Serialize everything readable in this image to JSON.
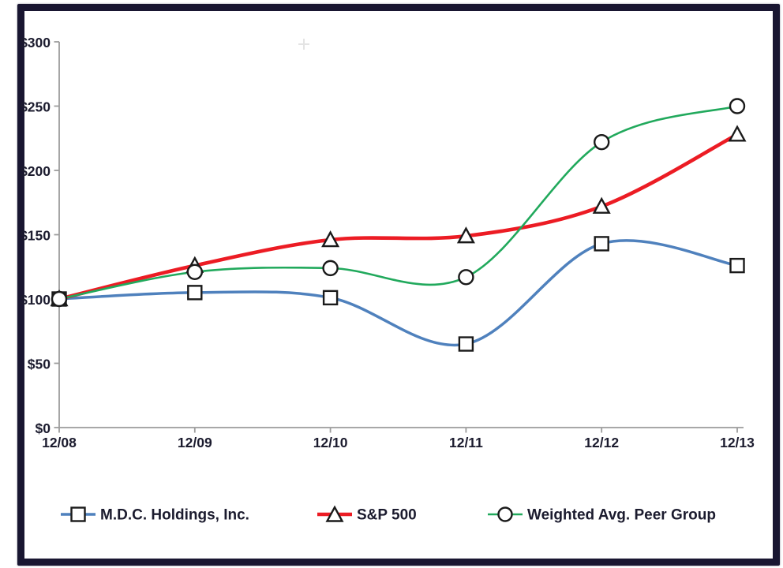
{
  "window": {
    "description": "Stock performance comparison line chart (framed scanned figure)"
  },
  "chart_data": {
    "type": "line",
    "title": "",
    "xlabel": "",
    "ylabel": "",
    "x_categories": [
      "12/08",
      "12/09",
      "12/10",
      "12/11",
      "12/12",
      "12/13"
    ],
    "series": [
      {
        "name": "M.D.C. Holdings, Inc.",
        "color": "#4f81bd",
        "marker": "square",
        "line_width": 3.5,
        "values": [
          100,
          105,
          101,
          65,
          143,
          126
        ]
      },
      {
        "name": "S&P 500",
        "color": "#ec1c24",
        "marker": "triangle",
        "line_width": 4.6,
        "values": [
          100,
          126,
          146,
          149,
          172,
          228
        ]
      },
      {
        "name": "Weighted Avg. Peer Group",
        "color": "#21a95c",
        "marker": "circle",
        "line_width": 2.6,
        "values": [
          100,
          121,
          124,
          117,
          222,
          250
        ]
      }
    ],
    "y_axis": {
      "min": 0,
      "max": 300,
      "step": 50,
      "tick_prefix": "$",
      "tick_labels": [
        "$0",
        "$50",
        "$100",
        "$150",
        "$200",
        "$250",
        "$300"
      ]
    },
    "x_axis": {
      "tick_labels": [
        "12/08",
        "12/09",
        "12/10",
        "12/11",
        "12/12",
        "12/13"
      ]
    },
    "grid": false,
    "legend_position": "bottom",
    "smoothed_lines": true
  },
  "legend": {
    "items": [
      {
        "label": "M.D.C. Holdings, Inc."
      },
      {
        "label": "S&P 500"
      },
      {
        "label": "Weighted Avg. Peer Group"
      }
    ]
  },
  "colors": {
    "frame_border": "#191631",
    "axis": "#9c9c9c",
    "label_text": "#1b1b2e",
    "marker_outline": "#1a1a1a",
    "marker_fill": "#ffffff"
  }
}
